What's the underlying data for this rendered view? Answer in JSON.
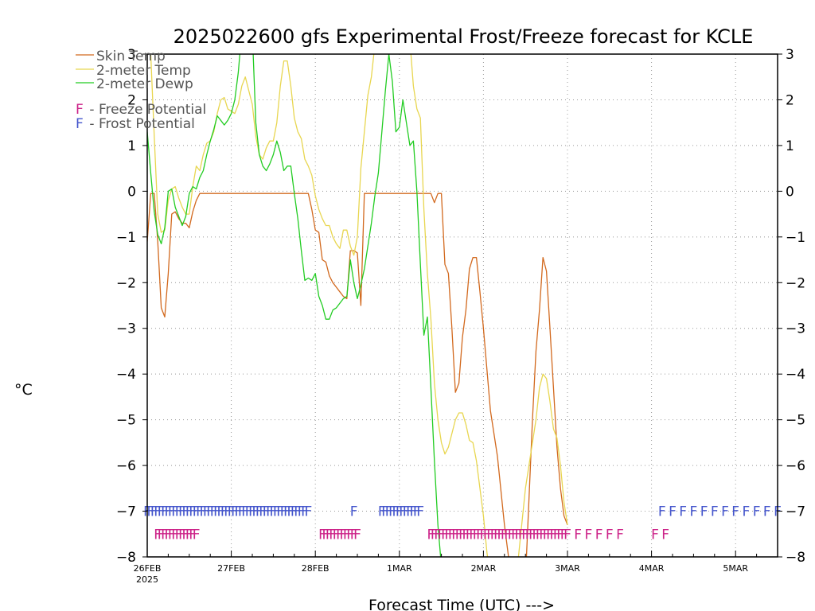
{
  "chart_data": {
    "type": "line",
    "title": "2025022600 gfs Experimental Frost/Freeze forecast for KCLE",
    "xlabel": "Forecast Time (UTC) --->",
    "ylabel": "°C",
    "ylim": [
      -8,
      3
    ],
    "xlim": [
      0,
      180
    ],
    "yticks": [
      "3",
      "2",
      "1",
      "0",
      "−1",
      "−2",
      "−3",
      "−4",
      "−5",
      "−6",
      "−7",
      "−8"
    ],
    "yticks_right": [
      "3",
      "2",
      "1",
      "0",
      "−1",
      "−2",
      "−3",
      "−4",
      "−5",
      "−6",
      "−7",
      "−8"
    ],
    "xticks": [
      {
        "hour": 0,
        "label": "26FEB",
        "sub": "2025"
      },
      {
        "hour": 24,
        "label": "27FEB"
      },
      {
        "hour": 48,
        "label": "28FEB"
      },
      {
        "hour": 72,
        "label": "1MAR"
      },
      {
        "hour": 96,
        "label": "2MAR"
      },
      {
        "hour": 120,
        "label": "3MAR"
      },
      {
        "hour": 144,
        "label": "4MAR"
      },
      {
        "hour": 168,
        "label": "5MAR"
      }
    ],
    "grid": "dotted",
    "legend": {
      "placement": "top-left",
      "entries": [
        {
          "label": "Skin Temp",
          "color": "#d2691e"
        },
        {
          "label": "2-meter Temp",
          "color": "#e8d650"
        },
        {
          "label": "2-meter Dewp",
          "color": "#22cc22"
        }
      ],
      "notes": [
        {
          "symbol": "F",
          "text": " - Freeze Potential",
          "color": "#cc2288"
        },
        {
          "symbol": "F",
          "text": " - Frost Potential",
          "color": "#4455cc"
        }
      ]
    },
    "frost_symbol": "F",
    "frost_color": "#4455cc",
    "freeze_color": "#cc2288",
    "series": [
      {
        "name": "Skin Temp",
        "color": "#d2691e",
        "x": [
          0,
          1,
          2,
          3,
          4,
          5,
          6,
          7,
          8,
          9,
          10,
          11,
          12,
          13,
          14,
          15,
          16,
          17,
          18,
          19,
          20,
          21,
          22,
          23,
          24,
          27,
          30,
          33,
          36,
          39,
          42,
          45,
          46,
          47,
          48,
          49,
          50,
          51,
          52,
          53,
          54,
          55,
          56,
          57,
          58,
          59,
          60,
          61,
          62,
          63,
          64,
          65,
          66,
          67,
          68,
          69,
          70,
          71,
          72,
          73,
          74,
          75,
          76,
          77,
          78,
          79,
          80,
          81,
          82,
          83,
          84,
          85,
          86,
          87,
          88,
          89,
          90,
          91,
          92,
          93,
          94,
          95,
          96,
          98,
          100,
          102,
          104,
          106,
          108,
          110,
          111,
          112,
          113,
          114,
          115,
          116,
          117,
          118,
          119,
          120
        ],
        "y": [
          -1.1,
          -0.05,
          -0.05,
          -1.1,
          -2.55,
          -2.75,
          -1.8,
          -0.5,
          -0.45,
          -0.6,
          -0.7,
          -0.7,
          -0.8,
          -0.45,
          -0.2,
          -0.05,
          -0.05,
          -0.05,
          -0.05,
          -0.05,
          -0.05,
          -0.05,
          -0.05,
          -0.05,
          -0.05,
          -0.05,
          -0.05,
          -0.05,
          -0.05,
          -0.05,
          -0.05,
          -0.05,
          -0.05,
          -0.4,
          -0.85,
          -0.9,
          -1.5,
          -1.55,
          -1.85,
          -2.0,
          -2.1,
          -2.2,
          -2.3,
          -2.35,
          -1.3,
          -1.3,
          -1.35,
          -2.5,
          -0.05,
          -0.05,
          -0.05,
          -0.05,
          -0.05,
          -0.05,
          -0.05,
          -0.05,
          -0.05,
          -0.05,
          -0.05,
          -0.05,
          -0.05,
          -0.05,
          -0.05,
          -0.05,
          -0.05,
          -0.05,
          -0.05,
          -0.05,
          -0.25,
          -0.05,
          -0.05,
          -1.6,
          -1.8,
          -3.0,
          -4.4,
          -4.2,
          -3.2,
          -2.6,
          -1.7,
          -1.45,
          -1.45,
          -2.2,
          -3.0,
          -4.8,
          -5.8,
          -7.3,
          -8.5,
          -9.0,
          -8.5,
          -5.0,
          -3.5,
          -2.6,
          -1.45,
          -1.75,
          -3.0,
          -4.3,
          -5.6,
          -6.5,
          -7.1,
          -7.3
        ]
      },
      {
        "name": "2-meter Temp",
        "color": "#e8d650",
        "x": [
          0,
          1,
          2,
          3,
          4,
          5,
          6,
          7,
          8,
          9,
          10,
          11,
          12,
          13,
          14,
          15,
          16,
          17,
          18,
          19,
          20,
          21,
          22,
          23,
          24,
          25,
          26,
          27,
          28,
          29,
          30,
          31,
          32,
          33,
          34,
          35,
          36,
          37,
          38,
          39,
          40,
          41,
          42,
          43,
          44,
          45,
          46,
          47,
          48,
          49,
          50,
          51,
          52,
          53,
          54,
          55,
          56,
          57,
          58,
          59,
          60,
          61,
          62,
          63,
          64,
          65,
          66,
          67,
          68,
          69,
          70,
          71,
          72,
          73,
          74,
          75,
          76,
          77,
          78,
          79,
          80,
          81,
          82,
          83,
          84,
          85,
          86,
          87,
          88,
          89,
          90,
          91,
          92,
          93,
          94,
          95,
          96,
          97,
          98,
          99,
          100,
          102,
          104,
          106,
          108,
          110,
          111,
          112,
          113,
          114,
          115,
          116,
          117,
          118,
          119,
          120
        ],
        "y": [
          3.5,
          3.0,
          1.2,
          -0.5,
          -0.9,
          -0.85,
          -0.2,
          0.05,
          0.1,
          -0.15,
          -0.35,
          -0.5,
          -0.5,
          0.1,
          0.55,
          0.45,
          0.8,
          1.05,
          1.1,
          1.3,
          1.7,
          2.0,
          2.05,
          1.8,
          1.75,
          1.7,
          1.9,
          2.3,
          2.5,
          2.2,
          1.9,
          1.2,
          0.8,
          0.7,
          0.95,
          1.1,
          1.1,
          1.5,
          2.3,
          2.85,
          2.85,
          2.3,
          1.6,
          1.3,
          1.15,
          0.7,
          0.55,
          0.35,
          -0.1,
          -0.4,
          -0.6,
          -0.75,
          -0.75,
          -1.0,
          -1.15,
          -1.25,
          -0.85,
          -0.85,
          -1.2,
          -1.4,
          -1.0,
          0.5,
          1.3,
          2.1,
          2.5,
          3.2,
          3.5,
          3.5,
          3.5,
          3.5,
          3.5,
          3.5,
          3.5,
          3.5,
          3.5,
          3.3,
          2.3,
          1.8,
          1.6,
          -0.4,
          -1.8,
          -2.8,
          -4.2,
          -5.0,
          -5.5,
          -5.75,
          -5.6,
          -5.3,
          -5.0,
          -4.85,
          -4.85,
          -5.1,
          -5.45,
          -5.5,
          -5.9,
          -6.5,
          -7.1,
          -7.9,
          -8.5,
          -9.0,
          -9.5,
          -9.8,
          -9.6,
          -8.0,
          -6.5,
          -5.5,
          -5.0,
          -4.3,
          -4.0,
          -4.1,
          -4.6,
          -5.2,
          -5.4,
          -6.0,
          -6.8,
          -7.3
        ]
      },
      {
        "name": "2-meter Dewp",
        "color": "#22cc22",
        "x": [
          0,
          1,
          2,
          3,
          4,
          5,
          6,
          7,
          8,
          9,
          10,
          11,
          12,
          13,
          14,
          15,
          16,
          17,
          18,
          19,
          20,
          21,
          22,
          23,
          24,
          25,
          26,
          27,
          28,
          29,
          30,
          31,
          32,
          33,
          34,
          35,
          36,
          37,
          38,
          39,
          40,
          41,
          42,
          43,
          44,
          45,
          46,
          47,
          48,
          49,
          50,
          51,
          52,
          53,
          54,
          55,
          56,
          57,
          58,
          59,
          60,
          61,
          62,
          63,
          64,
          65,
          66,
          67,
          68,
          69,
          70,
          71,
          72,
          73,
          74,
          75,
          76,
          77,
          78,
          79,
          80,
          81,
          82,
          83,
          84,
          85,
          86,
          87,
          88
        ],
        "y": [
          1.3,
          0.4,
          -0.45,
          -0.95,
          -1.15,
          -0.8,
          0.0,
          0.05,
          -0.35,
          -0.55,
          -0.75,
          -0.55,
          -0.05,
          0.1,
          0.05,
          0.3,
          0.45,
          0.8,
          1.1,
          1.35,
          1.65,
          1.55,
          1.45,
          1.55,
          1.7,
          2.0,
          2.6,
          3.5,
          3.5,
          3.5,
          3.5,
          1.5,
          0.8,
          0.55,
          0.45,
          0.6,
          0.8,
          1.1,
          0.85,
          0.45,
          0.55,
          0.55,
          -0.05,
          -0.6,
          -1.3,
          -1.95,
          -1.9,
          -1.95,
          -1.8,
          -2.3,
          -2.5,
          -2.8,
          -2.8,
          -2.6,
          -2.55,
          -2.45,
          -2.35,
          -2.3,
          -1.5,
          -2.0,
          -2.35,
          -2.05,
          -1.7,
          -1.2,
          -0.7,
          -0.1,
          0.4,
          1.3,
          2.2,
          3.0,
          2.4,
          1.3,
          1.4,
          2.0,
          1.5,
          1.0,
          1.1,
          0.0,
          -1.6,
          -3.15,
          -2.75,
          -4.3,
          -5.9,
          -7.3,
          -8.2,
          -8.3,
          -8.5,
          -8.6,
          -8.8
        ]
      }
    ],
    "frost_rows": [
      {
        "kind": "frost",
        "row": -7.0,
        "color": "#4455cc",
        "marks": [
          0,
          1,
          2,
          3,
          4,
          5,
          6,
          7,
          8,
          9,
          10,
          11,
          12,
          13,
          14,
          15,
          16,
          17,
          18,
          19,
          20,
          21,
          22,
          23,
          24,
          25,
          26,
          27,
          28,
          29,
          30,
          31,
          32,
          33,
          34,
          35,
          36,
          37,
          38,
          39,
          40,
          41,
          42,
          43,
          44,
          45,
          46,
          59,
          67,
          68,
          69,
          70,
          71,
          72,
          73,
          74,
          75,
          76,
          77,
          78,
          147,
          150,
          153,
          156,
          159,
          162,
          165,
          168,
          171,
          174,
          177,
          180
        ]
      },
      {
        "kind": "freeze",
        "row": -7.5,
        "color": "#cc2288",
        "marks": [
          3,
          4,
          5,
          6,
          7,
          8,
          9,
          10,
          11,
          12,
          13,
          14,
          50,
          51,
          52,
          53,
          54,
          55,
          56,
          57,
          58,
          59,
          60,
          81,
          82,
          83,
          84,
          85,
          86,
          87,
          88,
          89,
          90,
          91,
          92,
          93,
          94,
          95,
          96,
          97,
          98,
          99,
          100,
          101,
          102,
          103,
          104,
          105,
          106,
          107,
          108,
          109,
          110,
          111,
          112,
          113,
          114,
          115,
          116,
          117,
          118,
          119,
          120,
          123,
          126,
          129,
          132,
          135,
          145,
          148
        ]
      }
    ]
  }
}
